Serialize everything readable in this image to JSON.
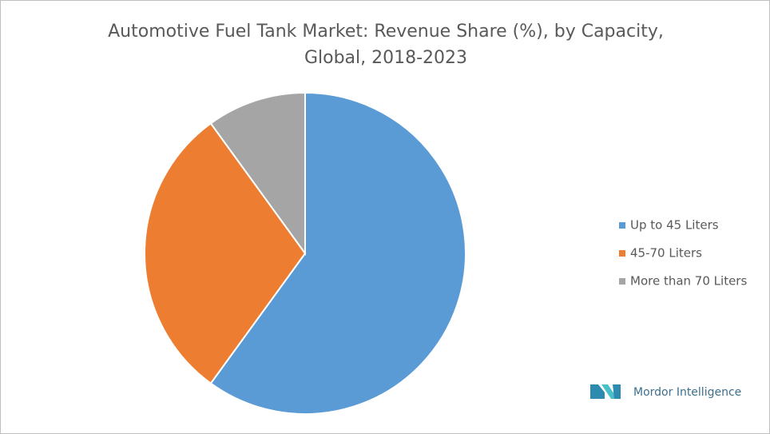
{
  "chart_data": {
    "type": "pie",
    "title": "Automotive Fuel Tank Market: Revenue Share (%), by Capacity, Global, 2018-2023",
    "categories": [
      "Up to 45 Liters",
      "45-70 Liters",
      "More than 70 Liters"
    ],
    "values": [
      60,
      30,
      10
    ],
    "colors": [
      "#5b9bd5",
      "#ed7d31",
      "#a5a5a5"
    ],
    "legend": "right"
  },
  "branding": "Mordor Intelligence"
}
